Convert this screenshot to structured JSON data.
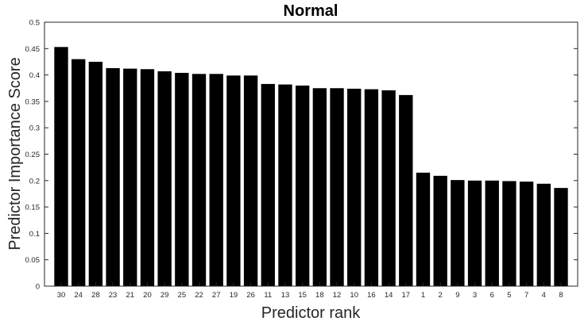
{
  "chart_data": {
    "type": "bar",
    "title": "Normal",
    "xlabel": "Predictor rank",
    "ylabel": "Predictor Importance Score",
    "categories": [
      "30",
      "24",
      "28",
      "23",
      "21",
      "20",
      "29",
      "25",
      "22",
      "27",
      "19",
      "26",
      "11",
      "13",
      "15",
      "18",
      "12",
      "10",
      "16",
      "14",
      "17",
      "1",
      "2",
      "9",
      "3",
      "6",
      "5",
      "7",
      "4",
      "8"
    ],
    "values": [
      0.453,
      0.43,
      0.425,
      0.413,
      0.412,
      0.411,
      0.407,
      0.404,
      0.402,
      0.402,
      0.399,
      0.399,
      0.383,
      0.382,
      0.38,
      0.375,
      0.375,
      0.374,
      0.373,
      0.371,
      0.362,
      0.215,
      0.209,
      0.201,
      0.2,
      0.2,
      0.199,
      0.198,
      0.194,
      0.186
    ],
    "ylim": [
      0,
      0.5
    ],
    "yticks": [
      "0",
      "0.05",
      "0.1",
      "0.15",
      "0.2",
      "0.25",
      "0.3",
      "0.35",
      "0.4",
      "0.45",
      "0.5"
    ],
    "bar_color": "#000000",
    "grid": false,
    "legend": "none"
  }
}
